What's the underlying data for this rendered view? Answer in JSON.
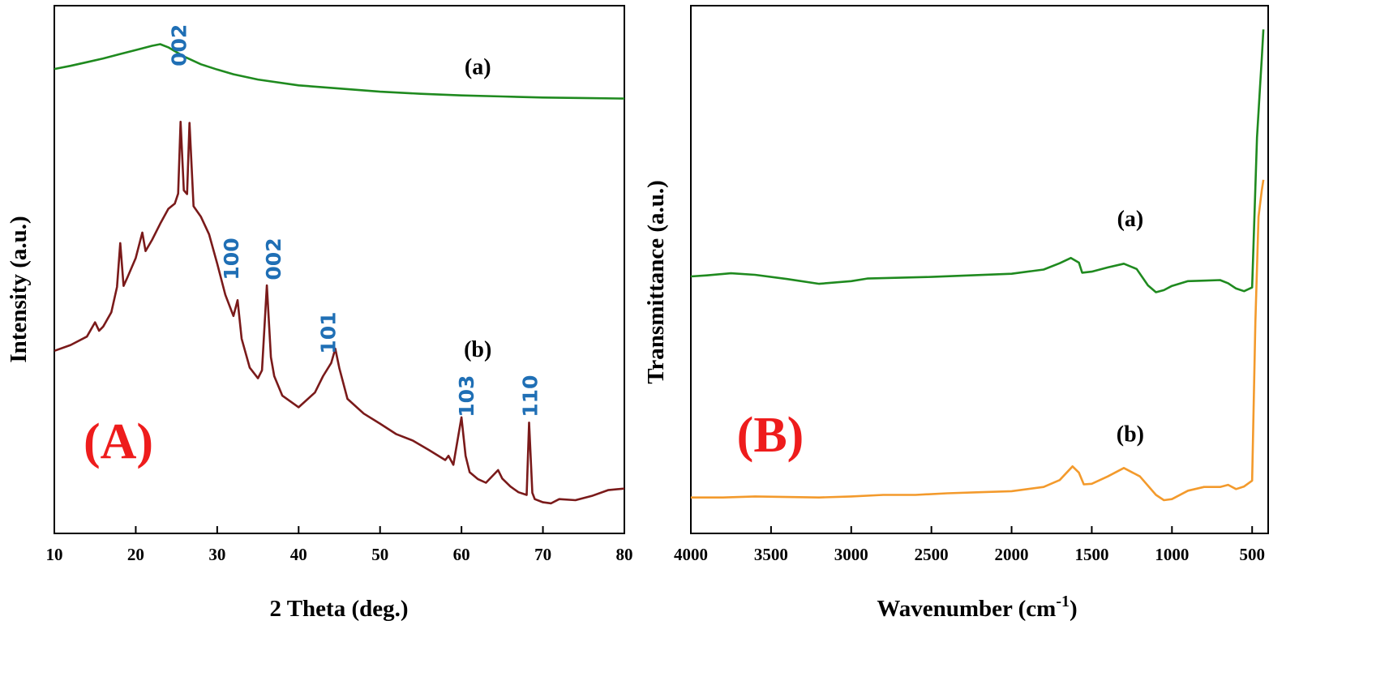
{
  "colors": {
    "green": "#1f8a1f",
    "dark_red": "#7a1a1a",
    "orange": "#f39a2c",
    "peak_label_blue": "#1f6fb5",
    "panel_label_red": "#ee1c1c"
  },
  "chart_data": [
    {
      "type": "line",
      "panel_label": "(A)",
      "xlabel": "2 Theta (deg.)",
      "ylabel": "Intensity (a.u.)",
      "xlim": [
        10,
        80
      ],
      "ylim": [
        0,
        100
      ],
      "x_ticks": [
        "10",
        "20",
        "30",
        "40",
        "50",
        "60",
        "70",
        "80"
      ],
      "y_ticks_shown": false,
      "grid": false,
      "series": [
        {
          "name": "(a)",
          "color": "#1f8a1f",
          "points": [
            [
              10,
              88
            ],
            [
              12,
              88.6
            ],
            [
              14,
              89.3
            ],
            [
              16,
              90
            ],
            [
              18,
              90.8
            ],
            [
              20,
              91.6
            ],
            [
              21,
              92
            ],
            [
              22,
              92.4
            ],
            [
              23,
              92.7
            ],
            [
              24,
              92.1
            ],
            [
              25,
              91.2
            ],
            [
              26,
              90.3
            ],
            [
              28,
              88.9
            ],
            [
              30,
              87.9
            ],
            [
              32,
              87
            ],
            [
              35,
              86
            ],
            [
              40,
              84.9
            ],
            [
              45,
              84.3
            ],
            [
              50,
              83.7
            ],
            [
              55,
              83.3
            ],
            [
              60,
              83
            ],
            [
              65,
              82.8
            ],
            [
              70,
              82.6
            ],
            [
              75,
              82.5
            ],
            [
              80,
              82.4
            ]
          ]
        },
        {
          "name": "(b)",
          "color": "#7a1a1a",
          "points": [
            [
              10,
              34.6
            ],
            [
              12,
              35.7
            ],
            [
              14,
              37.3
            ],
            [
              15,
              40
            ],
            [
              15.5,
              38.4
            ],
            [
              16,
              39.2
            ],
            [
              17,
              41.9
            ],
            [
              17.7,
              46.7
            ],
            [
              18.1,
              55
            ],
            [
              18.5,
              46.9
            ],
            [
              19,
              48.6
            ],
            [
              20,
              52.2
            ],
            [
              20.8,
              57
            ],
            [
              21.2,
              53.5
            ],
            [
              22,
              55.6
            ],
            [
              23,
              58.7
            ],
            [
              24,
              61.5
            ],
            [
              24.8,
              62.5
            ],
            [
              25.2,
              64.4
            ],
            [
              25.5,
              78
            ],
            [
              25.9,
              65
            ],
            [
              26.3,
              64.3
            ],
            [
              26.6,
              77.8
            ],
            [
              27.1,
              62
            ],
            [
              28,
              60
            ],
            [
              29,
              56.7
            ],
            [
              30,
              51.1
            ],
            [
              31,
              45.2
            ],
            [
              32,
              41.2
            ],
            [
              32.5,
              44.2
            ],
            [
              33,
              36.9
            ],
            [
              34,
              31.4
            ],
            [
              35,
              29.4
            ],
            [
              35.5,
              30.9
            ],
            [
              36.1,
              47
            ],
            [
              36.6,
              33.4
            ],
            [
              37,
              29.8
            ],
            [
              38,
              26.1
            ],
            [
              40,
              23.9
            ],
            [
              42,
              26.7
            ],
            [
              43,
              29.8
            ],
            [
              44,
              32.3
            ],
            [
              44.5,
              35
            ],
            [
              45,
              31.3
            ],
            [
              46,
              25.5
            ],
            [
              48,
              22.7
            ],
            [
              50,
              20.8
            ],
            [
              52,
              18.8
            ],
            [
              54,
              17.6
            ],
            [
              56,
              15.8
            ],
            [
              58,
              13.9
            ],
            [
              58.4,
              14.7
            ],
            [
              59,
              13
            ],
            [
              60,
              22
            ],
            [
              60.5,
              14.7
            ],
            [
              61,
              11.6
            ],
            [
              62,
              10.3
            ],
            [
              63,
              9.6
            ],
            [
              64.5,
              12
            ],
            [
              65,
              10.4
            ],
            [
              66,
              8.9
            ],
            [
              67,
              7.8
            ],
            [
              68,
              7.3
            ],
            [
              68.3,
              21
            ],
            [
              68.7,
              7.7
            ],
            [
              69,
              6.5
            ],
            [
              70,
              5.9
            ],
            [
              71,
              5.7
            ],
            [
              72,
              6.5
            ],
            [
              74,
              6.3
            ],
            [
              76,
              7.1
            ],
            [
              78,
              8.2
            ],
            [
              80,
              8.5
            ]
          ]
        }
      ],
      "annotations": [
        {
          "text": "002",
          "x": 26.2,
          "y": 92.5
        },
        {
          "text": "100",
          "x": 32.6,
          "y": 52
        },
        {
          "text": "002",
          "x": 37.8,
          "y": 52
        },
        {
          "text": "101",
          "x": 44.5,
          "y": 38
        },
        {
          "text": "103",
          "x": 61.5,
          "y": 26
        },
        {
          "text": "110",
          "x": 69.3,
          "y": 26
        }
      ],
      "series_labels": [
        {
          "text": "(a)",
          "x": 62,
          "y": 87
        },
        {
          "text": "(b)",
          "x": 62,
          "y": 33.5
        }
      ]
    },
    {
      "type": "line",
      "panel_label": "(B)",
      "xlabel": "Wavenumber (cm",
      "xlabel_superscript": "-1",
      "xlabel_suffix": ")",
      "ylabel": "Transmittance (a.u.)",
      "xlim": [
        4000,
        400
      ],
      "ylim": [
        0,
        100
      ],
      "x_ticks": [
        "4000",
        "3500",
        "3000",
        "2500",
        "2000",
        "1500",
        "1000",
        "500"
      ],
      "y_ticks_shown": false,
      "grid": false,
      "series": [
        {
          "name": "(a)",
          "color": "#1f8a1f",
          "points": [
            [
              4000,
              48.7
            ],
            [
              3900,
              48.9
            ],
            [
              3750,
              49.3
            ],
            [
              3600,
              49
            ],
            [
              3400,
              48.2
            ],
            [
              3200,
              47.3
            ],
            [
              3000,
              47.8
            ],
            [
              2900,
              48.3
            ],
            [
              2500,
              48.6
            ],
            [
              2000,
              49.2
            ],
            [
              1800,
              50
            ],
            [
              1700,
              51.2
            ],
            [
              1630,
              52.2
            ],
            [
              1580,
              51.3
            ],
            [
              1560,
              49.4
            ],
            [
              1500,
              49.6
            ],
            [
              1400,
              50.4
            ],
            [
              1300,
              51.1
            ],
            [
              1220,
              50.1
            ],
            [
              1150,
              47
            ],
            [
              1100,
              45.7
            ],
            [
              1050,
              46.1
            ],
            [
              1000,
              46.9
            ],
            [
              900,
              47.8
            ],
            [
              800,
              47.9
            ],
            [
              700,
              48
            ],
            [
              650,
              47.4
            ],
            [
              600,
              46.4
            ],
            [
              550,
              45.9
            ],
            [
              500,
              46.6
            ],
            [
              470,
              75
            ],
            [
              450,
              85
            ],
            [
              440,
              90
            ],
            [
              430,
              95.5
            ]
          ]
        },
        {
          "name": "(b)",
          "color": "#f39a2c",
          "points": [
            [
              4000,
              6.8
            ],
            [
              3800,
              6.8
            ],
            [
              3600,
              7
            ],
            [
              3400,
              6.9
            ],
            [
              3200,
              6.8
            ],
            [
              3000,
              7
            ],
            [
              2800,
              7.3
            ],
            [
              2600,
              7.3
            ],
            [
              2400,
              7.6
            ],
            [
              2200,
              7.8
            ],
            [
              2000,
              8
            ],
            [
              1800,
              8.8
            ],
            [
              1700,
              10.1
            ],
            [
              1620,
              12.7
            ],
            [
              1580,
              11.5
            ],
            [
              1550,
              9.3
            ],
            [
              1500,
              9.4
            ],
            [
              1400,
              10.8
            ],
            [
              1300,
              12.4
            ],
            [
              1200,
              10.8
            ],
            [
              1100,
              7.3
            ],
            [
              1050,
              6.3
            ],
            [
              1000,
              6.5
            ],
            [
              900,
              8.1
            ],
            [
              800,
              8.8
            ],
            [
              700,
              8.8
            ],
            [
              650,
              9.2
            ],
            [
              600,
              8.4
            ],
            [
              550,
              8.9
            ],
            [
              500,
              10
            ],
            [
              480,
              40
            ],
            [
              460,
              60
            ],
            [
              440,
              65
            ],
            [
              430,
              67
            ]
          ]
        }
      ],
      "series_labels": [
        {
          "text": "(a)",
          "x": 1260,
          "y": 58.2
        },
        {
          "text": "(b)",
          "x": 1260,
          "y": 17.4
        }
      ]
    }
  ]
}
